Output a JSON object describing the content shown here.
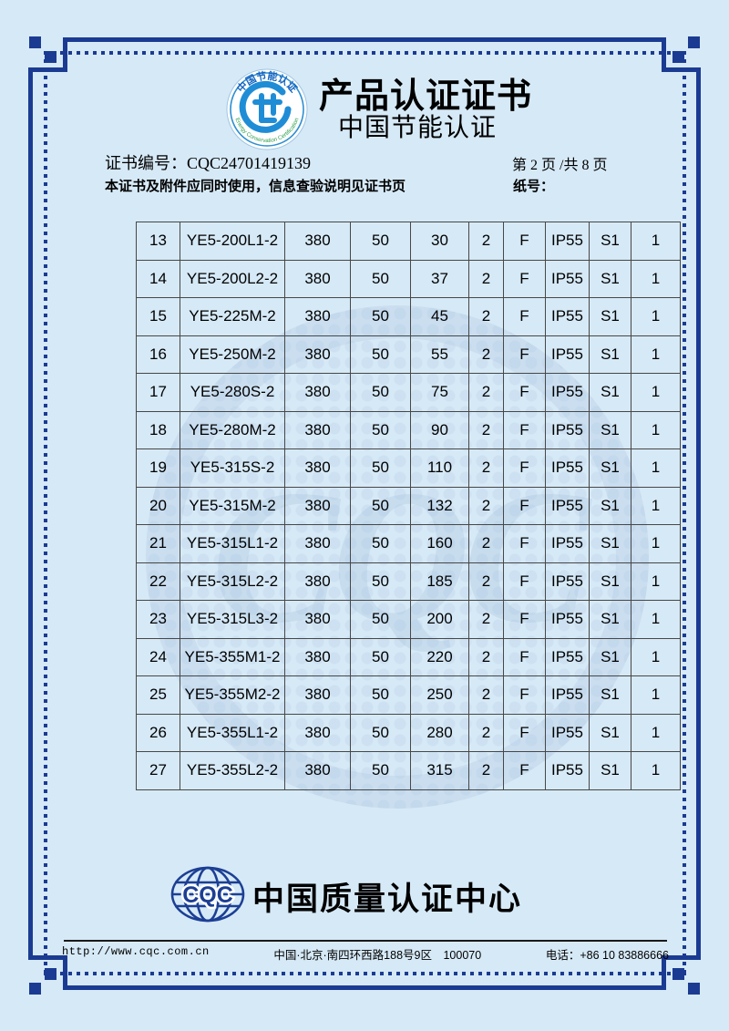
{
  "page": {
    "background_color": "#d6e9f6",
    "frame_color": "#1b3b92"
  },
  "header": {
    "emblem": {
      "icon": "energy-conservation-emblem",
      "arc_top_text": "中国节能认证",
      "arc_bottom_text": "Energy Conservation Certification",
      "ring_color": "#2e8fd0",
      "top_text_color": "#1565c0",
      "bottom_text_color": "#2e9e4f"
    },
    "title": "产品认证证书",
    "subtitle": "中国节能认证",
    "cert_no_label": "证书编号：",
    "cert_no": "CQC24701419139",
    "page_info": "第 2 页 /共 8 页",
    "usage_note": "本证书及附件应同时使用，信息查验说明见证书页",
    "paper_no_label": "纸号："
  },
  "table": {
    "rows": [
      [
        "13",
        "YE5-200L1-2",
        "380",
        "50",
        "30",
        "2",
        "F",
        "IP55",
        "S1",
        "1"
      ],
      [
        "14",
        "YE5-200L2-2",
        "380",
        "50",
        "37",
        "2",
        "F",
        "IP55",
        "S1",
        "1"
      ],
      [
        "15",
        "YE5-225M-2",
        "380",
        "50",
        "45",
        "2",
        "F",
        "IP55",
        "S1",
        "1"
      ],
      [
        "16",
        "YE5-250M-2",
        "380",
        "50",
        "55",
        "2",
        "F",
        "IP55",
        "S1",
        "1"
      ],
      [
        "17",
        "YE5-280S-2",
        "380",
        "50",
        "75",
        "2",
        "F",
        "IP55",
        "S1",
        "1"
      ],
      [
        "18",
        "YE5-280M-2",
        "380",
        "50",
        "90",
        "2",
        "F",
        "IP55",
        "S1",
        "1"
      ],
      [
        "19",
        "YE5-315S-2",
        "380",
        "50",
        "110",
        "2",
        "F",
        "IP55",
        "S1",
        "1"
      ],
      [
        "20",
        "YE5-315M-2",
        "380",
        "50",
        "132",
        "2",
        "F",
        "IP55",
        "S1",
        "1"
      ],
      [
        "21",
        "YE5-315L1-2",
        "380",
        "50",
        "160",
        "2",
        "F",
        "IP55",
        "S1",
        "1"
      ],
      [
        "22",
        "YE5-315L2-2",
        "380",
        "50",
        "185",
        "2",
        "F",
        "IP55",
        "S1",
        "1"
      ],
      [
        "23",
        "YE5-315L3-2",
        "380",
        "50",
        "200",
        "2",
        "F",
        "IP55",
        "S1",
        "1"
      ],
      [
        "24",
        "YE5-355M1-2",
        "380",
        "50",
        "220",
        "2",
        "F",
        "IP55",
        "S1",
        "1"
      ],
      [
        "25",
        "YE5-355M2-2",
        "380",
        "50",
        "250",
        "2",
        "F",
        "IP55",
        "S1",
        "1"
      ],
      [
        "26",
        "YE5-355L1-2",
        "380",
        "50",
        "280",
        "2",
        "F",
        "IP55",
        "S1",
        "1"
      ],
      [
        "27",
        "YE5-355L2-2",
        "380",
        "50",
        "315",
        "2",
        "F",
        "IP55",
        "S1",
        "1"
      ]
    ]
  },
  "watermark": {
    "text": "CQC"
  },
  "footer": {
    "org": {
      "globe_icon": "cqc-globe",
      "globe_text": "CQC",
      "globe_color": "#1c3f94",
      "name": "中国质量认证中心"
    },
    "website": "http://www.cqc.com.cn",
    "address": "中国·北京·南四环西路188号9区　100070",
    "phone": "电话：+86 10 83886666"
  }
}
